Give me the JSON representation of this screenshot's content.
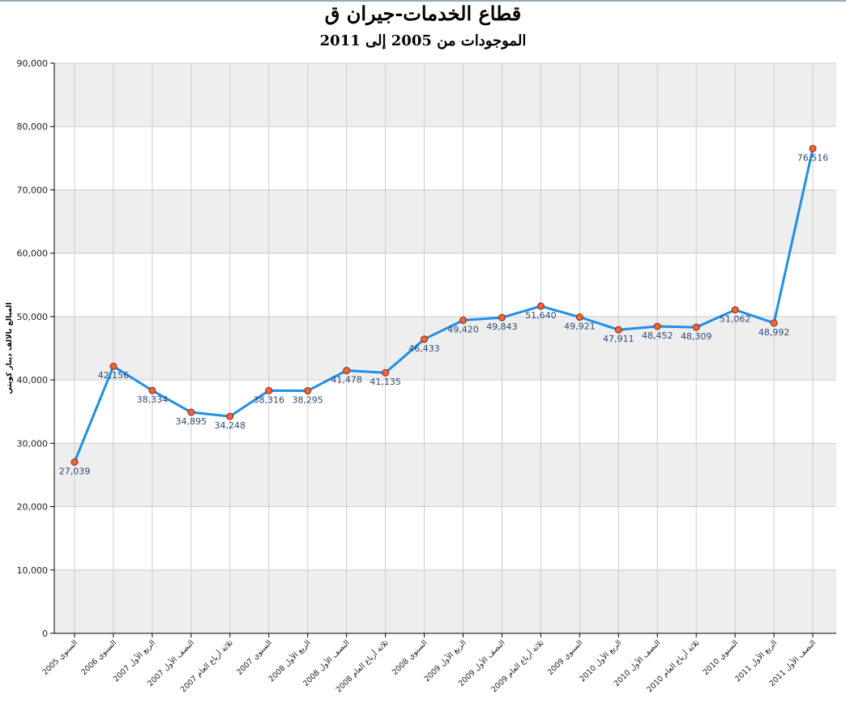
{
  "chart_data": {
    "type": "line",
    "title": "قطاع الخدمات-جيران ق",
    "subtitle": "الموجودات من 2005 إلى 2011",
    "ylabel": "المبالغ بالالف دينار كويتي",
    "xlabel": "",
    "ylim": [
      0,
      90000
    ],
    "yticks": [
      "0",
      "10,000",
      "20,000",
      "30,000",
      "40,000",
      "50,000",
      "60,000",
      "70,000",
      "80,000",
      "90,000"
    ],
    "grid": true,
    "line_color": "#1e90e8",
    "marker_color": "#f4623a",
    "band_color": "#eeeeee",
    "categories": [
      "السنوي 2005",
      "السنوي 2006",
      "الربع الأول 2007",
      "النصف الأول 2007",
      "ثلاثة أرباع العام 2007",
      "السنوي 2007",
      "الربع الأول 2008",
      "النصف الأول 2008",
      "ثلاثة أرباع العام 2008",
      "السنوي 2008",
      "الربع الأول 2009",
      "النصف الأول 2009",
      "ثلاثة أرباع العام 2009",
      "السنوي 2009",
      "الربع الأول 2010",
      "النصف الأول 2010",
      "ثلاثة أرباع العام 2010",
      "السنوي 2010",
      "الربع الأول 2011",
      "النصف الأول 2011"
    ],
    "values": [
      27039,
      42156,
      38334,
      34895,
      34248,
      38316,
      38295,
      41478,
      41135,
      46433,
      49420,
      49843,
      51640,
      49921,
      47911,
      48452,
      48309,
      51062,
      48992,
      76516
    ],
    "value_labels": [
      "27,039",
      "42,156",
      "38,334",
      "34,895",
      "34,248",
      "38,316",
      "38,295",
      "41,478",
      "41,135",
      "46,433",
      "49,420",
      "49,843",
      "51,640",
      "49,921",
      "47,911",
      "48,452",
      "48,309",
      "51,062",
      "48,992",
      "76,516"
    ]
  }
}
